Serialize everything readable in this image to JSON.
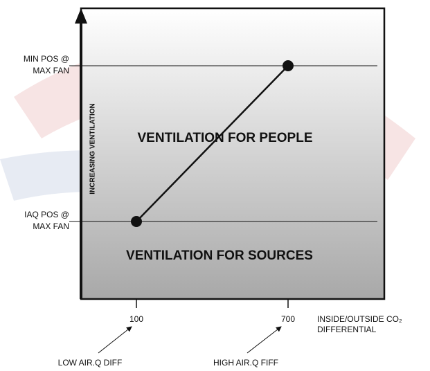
{
  "y_levels": [
    {
      "lines": [
        "MIN POS @",
        "MAX FAN"
      ]
    },
    {
      "lines": [
        "IAQ POS @",
        "MAX FAN"
      ]
    }
  ],
  "y_axis_label": "INCREASING VENTILATION",
  "regions": [
    "VENTILATION FOR PEOPLE",
    "VENTILATION FOR SOURCES"
  ],
  "x_ticks": [
    "100",
    "700"
  ],
  "x_axis_label": [
    "INSIDE/OUTSIDE CO₂",
    "DIFFERENTIAL"
  ],
  "annotations": [
    "LOW AIR.Q DIFF",
    "HIGH AIR.Q FIFF"
  ]
}
